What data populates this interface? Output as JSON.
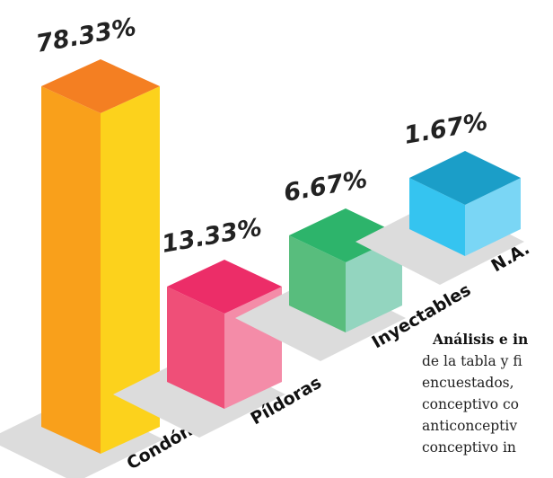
{
  "chart_data": {
    "type": "bar3d",
    "categories": [
      "Condón",
      "Píldoras",
      "Inyectables",
      "N.A."
    ],
    "values": [
      78.33,
      13.33,
      6.67,
      1.67
    ],
    "value_labels": [
      "78.33%",
      "13.33%",
      "6.67%",
      "1.67%"
    ],
    "colors": [
      {
        "top": "#f47f22",
        "left": "#f9a01b",
        "right": "#fcd21c"
      },
      {
        "top": "#ec2d68",
        "left": "#ef4f78",
        "right": "#f48ca8"
      },
      {
        "top": "#2db46b",
        "left": "#58bd7d",
        "right": "#93d5bf"
      },
      {
        "top": "#1b9ec8",
        "left": "#35c4f0",
        "right": "#7ad6f5"
      }
    ]
  },
  "text_block": {
    "heading": "Análisis e in",
    "lines": [
      "de la tabla y fi",
      "encuestados,",
      "conceptivo co",
      "anticonceptiv",
      "conceptivo in"
    ]
  }
}
